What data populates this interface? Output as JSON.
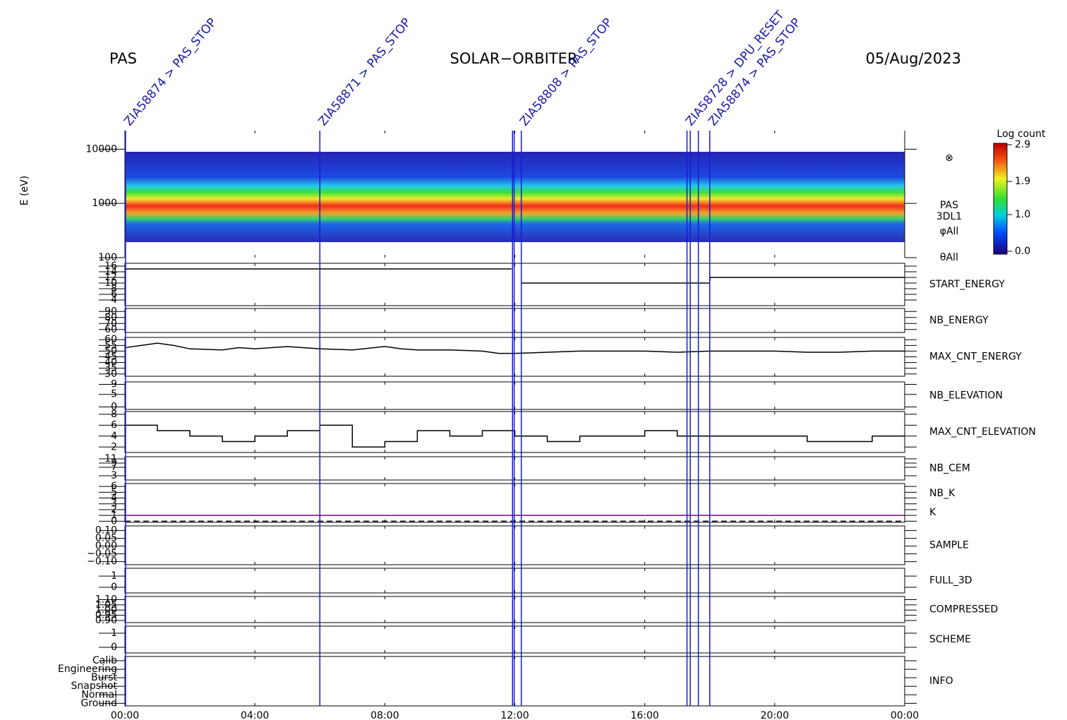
{
  "header": {
    "left": "PAS",
    "center": "SOLAR−ORBITER",
    "right": "05/Aug/2023"
  },
  "xlim": [
    0,
    24
  ],
  "xticks": [
    {
      "value": 0,
      "label": "00:00"
    },
    {
      "value": 4,
      "label": "04:00"
    },
    {
      "value": 8,
      "label": "08:00"
    },
    {
      "value": 12,
      "label": "12:00"
    },
    {
      "value": 16,
      "label": "16:00"
    },
    {
      "value": 20,
      "label": "20:00"
    },
    {
      "value": 24,
      "label": "00:00"
    }
  ],
  "markers": [
    {
      "time": 0.02,
      "label": "ZIA58874 > PAS_STOP"
    },
    {
      "time": 6.0,
      "label": "ZIA58871 > PAS_STOP"
    },
    {
      "time": 11.93,
      "label": null
    },
    {
      "time": 11.98,
      "label": null
    },
    {
      "time": 12.2,
      "label": "ZIA58808 > PAS_STOP"
    },
    {
      "time": 17.3,
      "label": "ZIA58728 > DPU_RESET"
    },
    {
      "time": 17.4,
      "label": null
    },
    {
      "time": 17.65,
      "label": null
    },
    {
      "time": 18.0,
      "label": "ZIA58874 > PAS_STOP"
    }
  ],
  "colorbar": {
    "title": "Log count",
    "clim": [
      0,
      2.9
    ],
    "ticks": [
      {
        "value": 0,
        "label": "0.0"
      },
      {
        "value": 1,
        "label": "1.0"
      },
      {
        "value": 1.9,
        "label": "1.9"
      },
      {
        "value": 2.9,
        "label": "2.9"
      }
    ]
  },
  "panels": [
    {
      "ylabel": "E (eV)",
      "log": true,
      "ylim": [
        100,
        22000
      ],
      "yticks": [
        100,
        1000,
        10000
      ],
      "right_labels": [
        "PAS",
        "3DL1",
        "φAll",
        "θAll"
      ],
      "label_color": "#000000"
    },
    {
      "label": "START_ENERGY",
      "label_color": "#000000",
      "ylim": [
        2,
        17
      ],
      "yticks": [
        16,
        14,
        12,
        10,
        8,
        6,
        4
      ],
      "series": [
        {
          "color": "#000000",
          "x": [
            0,
            11.9,
            12.05,
            12.2,
            18,
            18.01,
            24
          ],
          "values": [
            15,
            15,
            null,
            10,
            10,
            12,
            12
          ]
        }
      ]
    },
    {
      "label": "NB_ENERGY",
      "label_color": "#1a1aa6",
      "ylim": [
        55,
        95
      ],
      "yticks": [
        90,
        80,
        70,
        60
      ]
    },
    {
      "label": "MAX_CNT_ENERGY",
      "label_color": "#000000",
      "ylim": [
        28,
        62
      ],
      "yticks": [
        60,
        55,
        50,
        45,
        40,
        35,
        30
      ],
      "series": [
        {
          "color": "#000000",
          "x": [
            0,
            0.5,
            1,
            1.5,
            2,
            3,
            3.5,
            4,
            5,
            6,
            7,
            8,
            8.5,
            9,
            10,
            11,
            11.5,
            12,
            13,
            14,
            15,
            16,
            17,
            18,
            19,
            20,
            21,
            22,
            23,
            24
          ],
          "values": [
            53,
            55,
            57,
            55,
            52,
            51,
            53,
            52,
            54,
            52,
            51,
            54,
            52,
            51,
            51,
            50,
            48,
            48,
            49,
            50,
            50,
            50,
            49,
            50,
            50,
            50,
            49,
            49,
            50,
            50
          ]
        }
      ]
    },
    {
      "label": "NB_ELEVATION",
      "label_color": "#1a1aa6",
      "ylim": [
        -1,
        10
      ],
      "yticks": [
        9,
        5,
        0
      ]
    },
    {
      "label": "MAX_CNT_ELEVATION",
      "label_color": "#000000",
      "ylim": [
        1,
        8.5
      ],
      "yticks": [
        8,
        6,
        4,
        2
      ],
      "step": true,
      "series": [
        {
          "color": "#000000",
          "x": [
            0,
            1,
            2,
            3,
            4,
            5,
            6,
            7,
            8,
            9,
            10,
            11,
            12,
            13,
            14,
            15,
            16,
            17,
            18,
            19,
            20,
            21,
            22,
            23,
            24
          ],
          "values": [
            6,
            5,
            4,
            3,
            4,
            5,
            6,
            2,
            3,
            5,
            4,
            5,
            4,
            3,
            4,
            4,
            5,
            4,
            4,
            4,
            4,
            3,
            3,
            4,
            4
          ]
        }
      ]
    },
    {
      "label": "NB_CEM",
      "label_color": "#1a1aa6",
      "ylim": [
        1,
        12
      ],
      "yticks": [
        11,
        9,
        7,
        3
      ]
    },
    {
      "label": "NB_K",
      "label_color": "#cc2222",
      "label2": "K",
      "label2_color": "#1a1aa6",
      "ylim": [
        -0.2,
        6.5
      ],
      "yticks": [
        6,
        5,
        4,
        3,
        2,
        1,
        0
      ],
      "series": [
        {
          "color": "#800080",
          "x": [
            0,
            24
          ],
          "values": [
            1,
            1
          ]
        },
        {
          "color": "#000000",
          "dashed": true,
          "x": [
            0,
            24
          ],
          "values": [
            0,
            0
          ]
        }
      ]
    },
    {
      "label": "SAMPLE",
      "label_color": "#1a1aa6",
      "ylim": [
        -0.12,
        0.13
      ],
      "yticks": [
        {
          "value": 0.1,
          "label": "0.10"
        },
        {
          "value": 0.05,
          "label": "0.05"
        },
        {
          "value": 0,
          "label": "0.00"
        },
        {
          "value": -0.05,
          "label": "−0.05"
        },
        {
          "value": -0.1,
          "label": "−0.10"
        }
      ]
    },
    {
      "label": "FULL_3D",
      "label_color": "#1a1aa6",
      "ylim": [
        -0.5,
        1.7
      ],
      "yticks": [
        1,
        0
      ]
    },
    {
      "label": "COMPRESSED",
      "label_color": "#000000",
      "ylim": [
        0.88,
        1.13
      ],
      "yticks": [
        {
          "value": 1.1,
          "label": "1.10"
        },
        {
          "value": 1.05,
          "label": "1.05"
        },
        {
          "value": 1,
          "label": "1.00"
        },
        {
          "value": 0.95,
          "label": "0.95"
        },
        {
          "value": 0.9,
          "label": "0.90"
        }
      ]
    },
    {
      "label": "SCHEME",
      "label_color": "#000000",
      "ylim": [
        -0.4,
        1.5
      ],
      "yticks": [
        1,
        0
      ]
    },
    {
      "label": "INFO",
      "label_color": "#000000",
      "ylim": [
        -0.3,
        5.5
      ],
      "yticks": [
        {
          "value": 5,
          "label": "Calib"
        },
        {
          "value": 4,
          "label": "Engineering"
        },
        {
          "value": 3,
          "label": "Burst"
        },
        {
          "value": 2,
          "label": "Snapshot"
        },
        {
          "value": 1,
          "label": "Normal"
        },
        {
          "value": 0,
          "label": "Ground"
        }
      ]
    }
  ]
}
